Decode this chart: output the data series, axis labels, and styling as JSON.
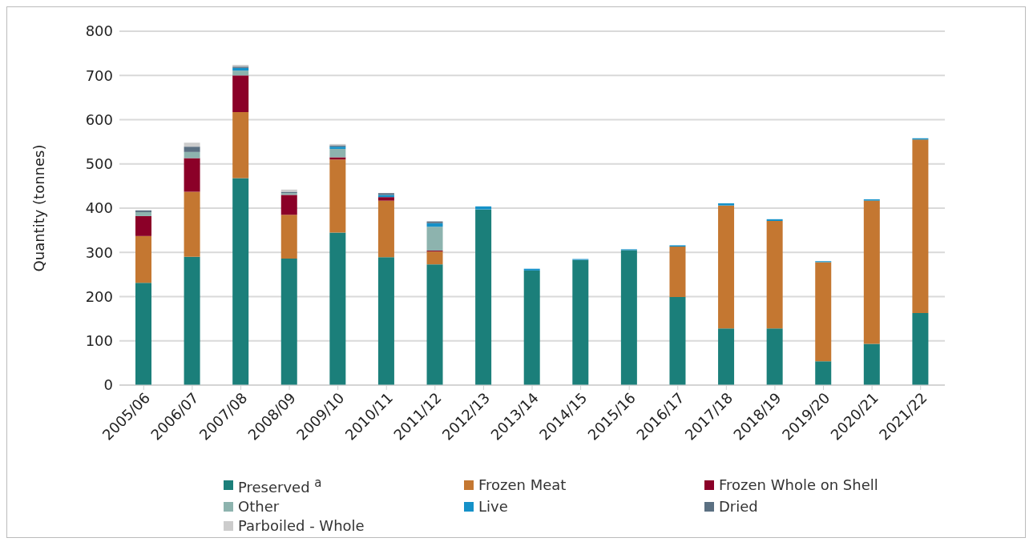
{
  "chart_data": {
    "type": "bar",
    "stacked": true,
    "ylabel": "Quantity (tonnes)",
    "categories": [
      "2005/06",
      "2006/07",
      "2007/08",
      "2008/09",
      "2009/10",
      "2010/11",
      "2011/12",
      "2012/13",
      "2013/14",
      "2014/15",
      "2015/16",
      "2016/17",
      "2017/18",
      "2018/19",
      "2019/20",
      "2020/21",
      "2021/22"
    ],
    "series": [
      {
        "name": "Preserved $^{a}$",
        "color": "#1b7f7a",
        "values": [
          231,
          290,
          468,
          286,
          345,
          289,
          273,
          397,
          259,
          283,
          305,
          199,
          128,
          128,
          54,
          93,
          163
        ]
      },
      {
        "name": "Frozen Meat",
        "color": "#c47731",
        "values": [
          106,
          147,
          149,
          99,
          165,
          128,
          29,
          null,
          null,
          null,
          null,
          114,
          278,
          243,
          224,
          324,
          392
        ]
      },
      {
        "name": "Frozen Whole on Shell",
        "color": "#8b0028",
        "values": [
          45,
          76,
          83,
          45,
          5,
          8,
          2,
          null,
          null,
          null,
          null,
          null,
          null,
          null,
          null,
          null,
          null
        ]
      },
      {
        "name": "Other",
        "color": "#8db3ae",
        "values": [
          9,
          14,
          11,
          4,
          19,
          null,
          54,
          null,
          null,
          null,
          null,
          null,
          null,
          null,
          null,
          null,
          null
        ]
      },
      {
        "name": "Live",
        "color": "#1591c8",
        "values": [
          null,
          null,
          6,
          null,
          5,
          5,
          8,
          7,
          4,
          2,
          2,
          3,
          5,
          4,
          2,
          3,
          3
        ]
      },
      {
        "name": "Dried",
        "color": "#5b7082",
        "values": [
          4,
          12,
          3,
          3,
          3,
          4,
          4,
          null,
          null,
          null,
          null,
          null,
          null,
          null,
          null,
          null,
          null
        ]
      },
      {
        "name": "Parboiled - Whole",
        "color": "#cccccc",
        "values": [
          null,
          9,
          4,
          5,
          3,
          null,
          null,
          null,
          null,
          null,
          null,
          null,
          null,
          null,
          null,
          null,
          null
        ]
      }
    ],
    "ylim": [
      0,
      800
    ],
    "yticks": [
      0,
      100,
      200,
      300,
      400,
      500,
      600,
      700,
      800
    ],
    "grid": "y",
    "legend": "bottom"
  }
}
